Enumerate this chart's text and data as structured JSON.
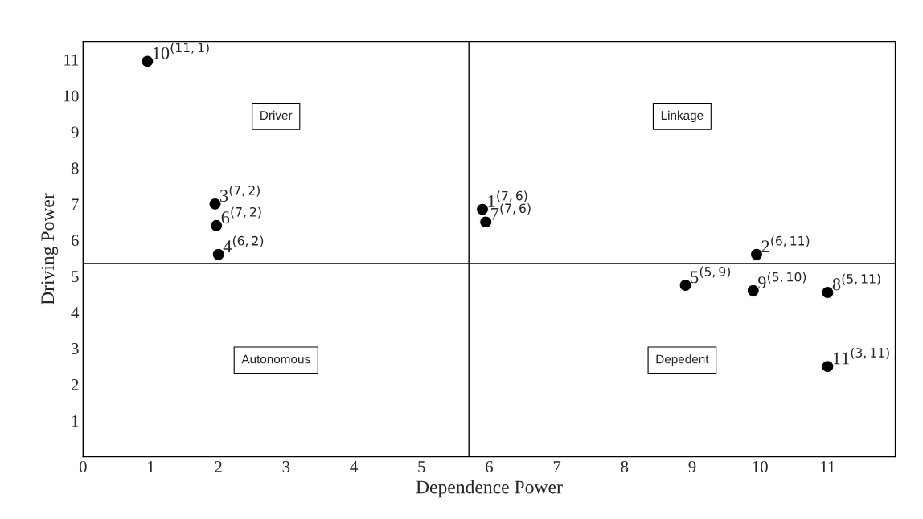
{
  "chart_data": {
    "type": "scatter",
    "xlabel": "Dependence Power",
    "ylabel": "Driving Power",
    "x": [
      0.95,
      1.95,
      1.97,
      2.0,
      5.9,
      5.95,
      9.95,
      8.9,
      9.9,
      11.0,
      11.0
    ],
    "values": [
      10.95,
      7.0,
      6.4,
      5.6,
      6.85,
      6.5,
      5.6,
      4.75,
      4.6,
      4.55,
      2.5
    ],
    "color": "#000000",
    "marker": "circle",
    "xlim": [
      0,
      12
    ],
    "ylim": [
      0,
      11.5
    ],
    "xticks": [
      0,
      1,
      2,
      3,
      4,
      5,
      6,
      7,
      8,
      9,
      10,
      11
    ],
    "yticks": [
      1,
      2,
      3,
      4,
      5,
      6,
      7,
      8,
      9,
      10,
      11
    ],
    "grid": false,
    "ref_lines": [
      {
        "axis": "x",
        "value": 5.7,
        "color": "#000000"
      },
      {
        "axis": "y",
        "value": 5.35,
        "color": "#000000"
      }
    ],
    "annotations": [
      "Driver",
      "Linkage",
      "Autonomous",
      "Depedent",
      {
        "text": "10$^{(11,1)}$",
        "x": 0.95,
        "y": 10.95
      },
      {
        "text": "3$^{(7,2)}$",
        "x": 1.95,
        "y": 7.0
      },
      {
        "text": "6$^{(7,2)}$",
        "x": 1.97,
        "y": 6.4
      },
      {
        "text": "4$^{(6,2)}$",
        "x": 2.0,
        "y": 5.6
      },
      {
        "text": "1$^{(7,6)}$",
        "x": 5.9,
        "y": 6.85
      },
      {
        "text": "7$^{(7,6)}$",
        "x": 5.95,
        "y": 6.5
      },
      {
        "text": "2$^{(6,11)}$",
        "x": 9.95,
        "y": 5.6
      },
      {
        "text": "5$^{(5,9)}$",
        "x": 8.9,
        "y": 4.75
      },
      {
        "text": "9$^{(5,10)}$",
        "x": 9.9,
        "y": 4.6
      },
      {
        "text": "8$^{(5,11)}$",
        "x": 11.0,
        "y": 4.55
      },
      {
        "text": "11$^{(3,11)}$",
        "x": 11.0,
        "y": 2.5
      }
    ]
  }
}
